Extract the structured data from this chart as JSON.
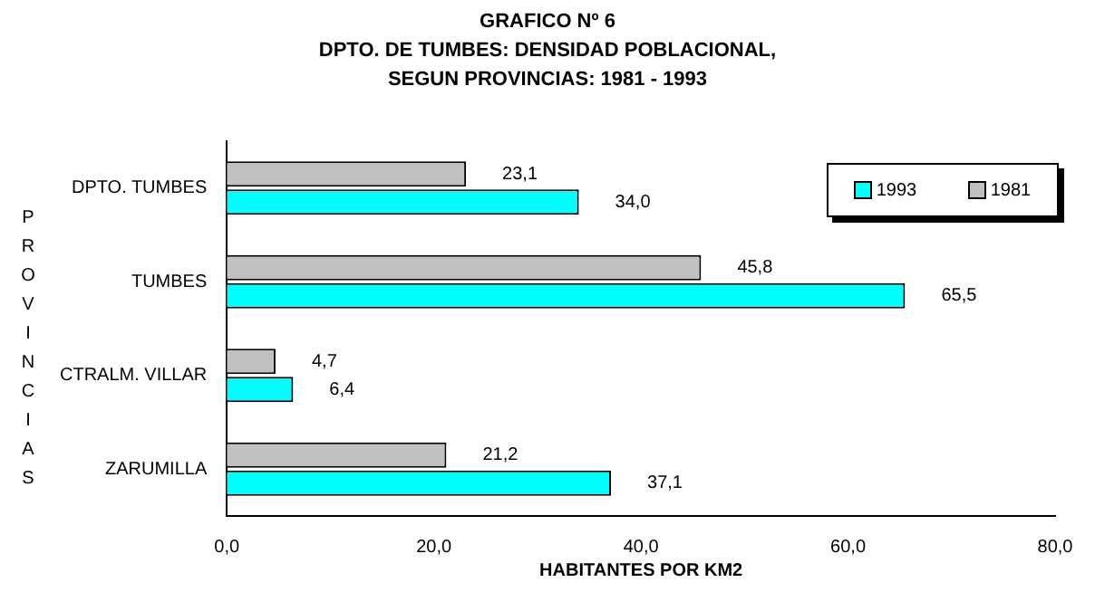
{
  "chart_data": {
    "type": "bar",
    "orientation": "horizontal",
    "title": "GRAFICO Nº 6",
    "subtitle": "DPTO. DE TUMBES: DENSIDAD POBLACIONAL, SEGUN PROVINCIAS: 1981 - 1993",
    "xlabel": "HABITANTES POR KM2",
    "ylabel": "PROVINCIAS",
    "categories": [
      "DPTO. TUMBES",
      "TUMBES",
      "CTRALM. VILLAR",
      "ZARUMILLA"
    ],
    "series": [
      {
        "name": "1981",
        "color": "#c0c0c0",
        "values": [
          23.1,
          45.8,
          4.7,
          21.2
        ],
        "value_labels": [
          "23,1",
          "45,8",
          "4,7",
          "21,2"
        ]
      },
      {
        "name": "1993",
        "color": "#00ffff",
        "values": [
          34.0,
          65.5,
          6.4,
          37.1
        ],
        "value_labels": [
          "34,0",
          "65,5",
          "6,4",
          "37,1"
        ]
      }
    ],
    "xlim": [
      0,
      80
    ],
    "xticks": [
      {
        "value": 0,
        "label": "0,0"
      },
      {
        "value": 20,
        "label": "20,0"
      },
      {
        "value": 40,
        "label": "40,0"
      },
      {
        "value": 60,
        "label": "60,0"
      },
      {
        "value": 80,
        "label": "80,0"
      }
    ],
    "grid": false,
    "legend": "top right"
  }
}
